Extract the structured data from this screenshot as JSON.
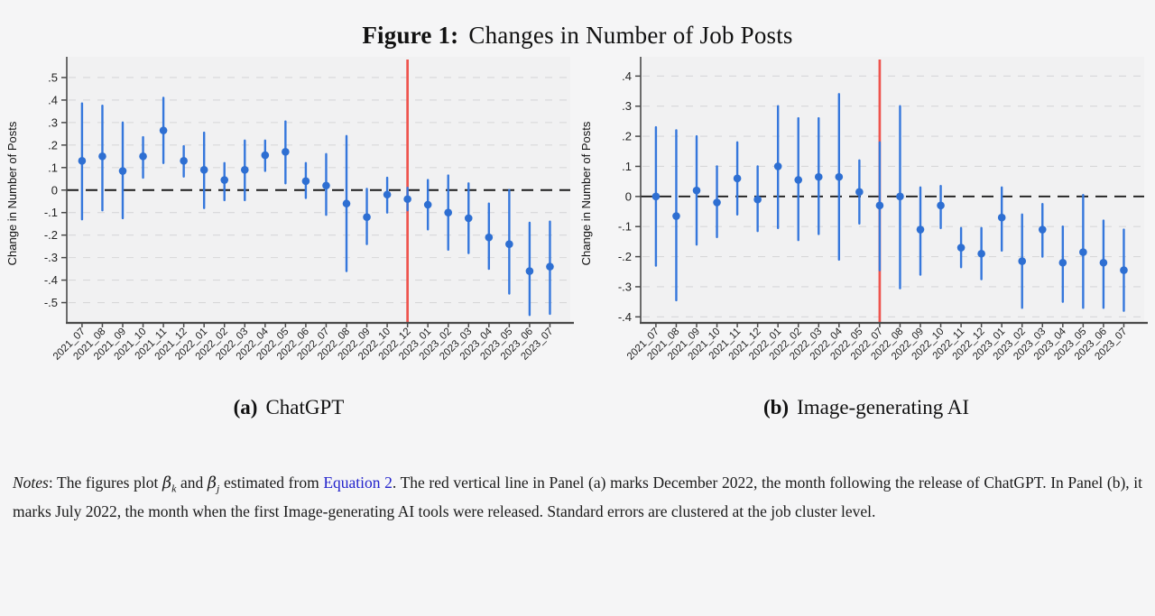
{
  "title": {
    "label": "Figure 1:",
    "text": "Changes in Number of Job Posts"
  },
  "colors": {
    "point_blue": "#2e6fd2",
    "ci_blue": "#3577dc",
    "event_red": "#ee544e",
    "zero_line": "#1b1b1b",
    "gridline": "#d7d7d9",
    "axis": "#4a4a4a",
    "tick_text": "#222222",
    "plot_bg": "#f1f1f2",
    "page_bg": "#f5f5f6",
    "link_blue": "#2323cc"
  },
  "chart_data": [
    {
      "type": "scatter",
      "subtype": "coefficient-plot-with-95ci-error-bars",
      "caption_label": "(a)",
      "caption_text": "ChatGPT",
      "ylabel": "Change in Number of Posts",
      "xlabel": "",
      "ylim": [
        -0.59,
        0.56
      ],
      "grid": true,
      "zero_reference_line": true,
      "red_line_category": "2022_12",
      "yticks": [
        {
          "v": 0.5,
          "label": ".5"
        },
        {
          "v": 0.4,
          "label": ".4"
        },
        {
          "v": 0.3,
          "label": ".3"
        },
        {
          "v": 0.2,
          "label": ".2"
        },
        {
          "v": 0.1,
          "label": ".1"
        },
        {
          "v": 0.0,
          "label": "0"
        },
        {
          "v": -0.1,
          "label": "-.1"
        },
        {
          "v": -0.2,
          "label": "-.2"
        },
        {
          "v": -0.3,
          "label": "-.3"
        },
        {
          "v": -0.4,
          "label": "-.4"
        },
        {
          "v": -0.5,
          "label": "-.5"
        }
      ],
      "points": [
        {
          "month": "2021_07",
          "est": 0.13,
          "lo": -0.13,
          "hi": 0.385
        },
        {
          "month": "2021_08",
          "est": 0.15,
          "lo": -0.09,
          "hi": 0.375
        },
        {
          "month": "2021_09",
          "est": 0.085,
          "lo": -0.125,
          "hi": 0.3
        },
        {
          "month": "2021_10",
          "est": 0.15,
          "lo": 0.055,
          "hi": 0.235
        },
        {
          "month": "2021_11",
          "est": 0.265,
          "lo": 0.12,
          "hi": 0.41
        },
        {
          "month": "2021_12",
          "est": 0.13,
          "lo": 0.06,
          "hi": 0.195
        },
        {
          "month": "2022_01",
          "est": 0.09,
          "lo": -0.08,
          "hi": 0.255
        },
        {
          "month": "2022_02",
          "est": 0.045,
          "lo": -0.045,
          "hi": 0.12
        },
        {
          "month": "2022_03",
          "est": 0.09,
          "lo": -0.045,
          "hi": 0.22
        },
        {
          "month": "2022_04",
          "est": 0.155,
          "lo": 0.085,
          "hi": 0.22
        },
        {
          "month": "2022_05",
          "est": 0.17,
          "lo": 0.03,
          "hi": 0.305
        },
        {
          "month": "2022_06",
          "est": 0.04,
          "lo": -0.035,
          "hi": 0.12
        },
        {
          "month": "2022_07",
          "est": 0.02,
          "lo": -0.11,
          "hi": 0.16
        },
        {
          "month": "2022_08",
          "est": -0.06,
          "lo": -0.36,
          "hi": 0.24
        },
        {
          "month": "2022_09",
          "est": -0.12,
          "lo": -0.24,
          "hi": 0.005
        },
        {
          "month": "2022_10",
          "est": -0.02,
          "lo": -0.1,
          "hi": 0.055
        },
        {
          "month": "2022_12",
          "est": -0.04,
          "lo": -0.09,
          "hi": 0.01
        },
        {
          "month": "2023_01",
          "est": -0.065,
          "lo": -0.175,
          "hi": 0.045
        },
        {
          "month": "2023_02",
          "est": -0.1,
          "lo": -0.265,
          "hi": 0.065
        },
        {
          "month": "2023_03",
          "est": -0.125,
          "lo": -0.28,
          "hi": 0.03
        },
        {
          "month": "2023_04",
          "est": -0.21,
          "lo": -0.35,
          "hi": -0.06
        },
        {
          "month": "2023_05",
          "est": -0.24,
          "lo": -0.46,
          "hi": 0.0
        },
        {
          "month": "2023_06",
          "est": -0.36,
          "lo": -0.555,
          "hi": -0.145
        },
        {
          "month": "2023_07",
          "est": -0.34,
          "lo": -0.55,
          "hi": -0.14
        }
      ]
    },
    {
      "type": "scatter",
      "subtype": "coefficient-plot-with-95ci-error-bars",
      "caption_label": "(b)",
      "caption_text": "Image-generating AI",
      "ylabel": "Change in Number of Posts",
      "xlabel": "",
      "ylim": [
        -0.42,
        0.44
      ],
      "grid": true,
      "zero_reference_line": true,
      "red_line_category": "2022_07",
      "yticks": [
        {
          "v": 0.4,
          "label": ".4"
        },
        {
          "v": 0.3,
          "label": ".3"
        },
        {
          "v": 0.2,
          "label": ".2"
        },
        {
          "v": 0.1,
          "label": ".1"
        },
        {
          "v": 0.0,
          "label": "0"
        },
        {
          "v": -0.1,
          "label": "-.1"
        },
        {
          "v": -0.2,
          "label": "-.2"
        },
        {
          "v": -0.3,
          "label": "-.3"
        },
        {
          "v": -0.4,
          "label": "-.4"
        }
      ],
      "points": [
        {
          "month": "2021_07",
          "est": 0.0,
          "lo": -0.23,
          "hi": 0.23
        },
        {
          "month": "2021_08",
          "est": -0.065,
          "lo": -0.345,
          "hi": 0.22
        },
        {
          "month": "2021_09",
          "est": 0.02,
          "lo": -0.16,
          "hi": 0.2
        },
        {
          "month": "2021_10",
          "est": -0.02,
          "lo": -0.135,
          "hi": 0.1
        },
        {
          "month": "2021_11",
          "est": 0.06,
          "lo": -0.06,
          "hi": 0.18
        },
        {
          "month": "2021_12",
          "est": -0.01,
          "lo": -0.115,
          "hi": 0.1
        },
        {
          "month": "2022_01",
          "est": 0.1,
          "lo": -0.105,
          "hi": 0.3
        },
        {
          "month": "2022_02",
          "est": 0.055,
          "lo": -0.145,
          "hi": 0.26
        },
        {
          "month": "2022_03",
          "est": 0.065,
          "lo": -0.125,
          "hi": 0.26
        },
        {
          "month": "2022_04",
          "est": 0.065,
          "lo": -0.21,
          "hi": 0.34
        },
        {
          "month": "2022_05",
          "est": 0.015,
          "lo": -0.09,
          "hi": 0.12
        },
        {
          "month": "2022_07",
          "est": -0.03,
          "lo": -0.245,
          "hi": 0.18
        },
        {
          "month": "2022_08",
          "est": 0.0,
          "lo": -0.305,
          "hi": 0.3
        },
        {
          "month": "2022_09",
          "est": -0.11,
          "lo": -0.26,
          "hi": 0.03
        },
        {
          "month": "2022_10",
          "est": -0.03,
          "lo": -0.105,
          "hi": 0.035
        },
        {
          "month": "2022_11",
          "est": -0.17,
          "lo": -0.235,
          "hi": -0.105
        },
        {
          "month": "2022_12",
          "est": -0.19,
          "lo": -0.275,
          "hi": -0.105
        },
        {
          "month": "2023_01",
          "est": -0.07,
          "lo": -0.18,
          "hi": 0.03
        },
        {
          "month": "2023_02",
          "est": -0.215,
          "lo": -0.37,
          "hi": -0.06
        },
        {
          "month": "2023_03",
          "est": -0.11,
          "lo": -0.2,
          "hi": -0.025
        },
        {
          "month": "2023_04",
          "est": -0.22,
          "lo": -0.35,
          "hi": -0.1
        },
        {
          "month": "2023_05",
          "est": -0.185,
          "lo": -0.37,
          "hi": 0.005
        },
        {
          "month": "2023_06",
          "est": -0.22,
          "lo": -0.37,
          "hi": -0.08
        },
        {
          "month": "2023_07",
          "est": -0.245,
          "lo": -0.38,
          "hi": -0.11
        }
      ]
    }
  ],
  "notes": {
    "segments": [
      {
        "t": "Notes",
        "s": "it"
      },
      {
        "t": ": The figures plot ",
        "s": "n"
      },
      {
        "t": "β",
        "s": "beta"
      },
      {
        "t": "k",
        "s": "sub"
      },
      {
        "t": " and ",
        "s": "n"
      },
      {
        "t": "β",
        "s": "beta"
      },
      {
        "t": "j",
        "s": "sub"
      },
      {
        "t": " estimated from ",
        "s": "n"
      },
      {
        "t": "Equation 2",
        "s": "link"
      },
      {
        "t": ". The red vertical line in Panel (a) marks December 2022, the month following the release of ChatGPT. In Panel (b), it marks July 2022, the month when the first Image-generating AI tools were released. Standard errors are clustered at the job cluster level.",
        "s": "n"
      }
    ]
  }
}
